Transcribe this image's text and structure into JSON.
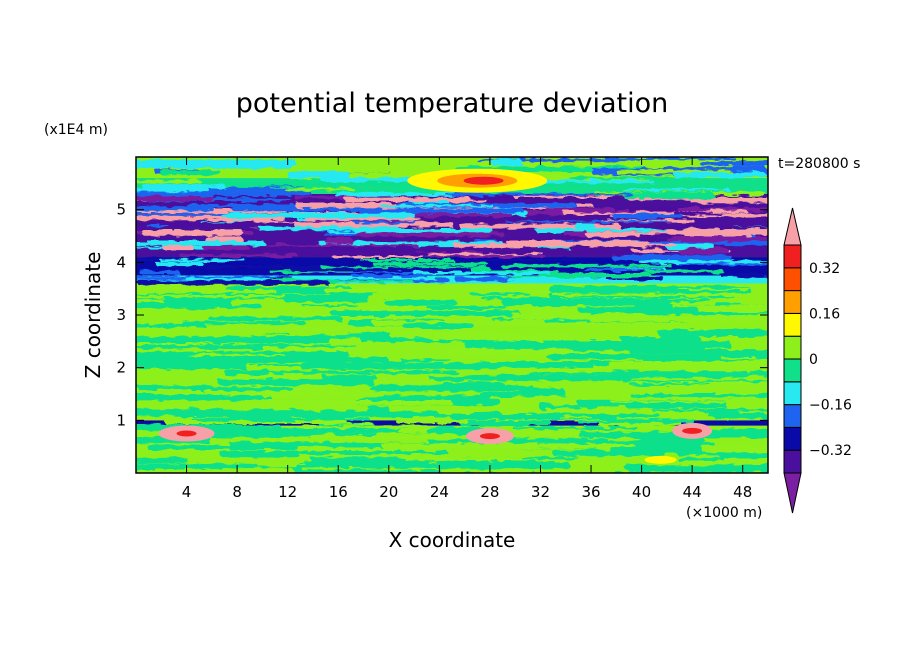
{
  "chart_data": {
    "type": "heatmap",
    "title": "potential temperature deviation",
    "time_label": "t=280800 s",
    "xlabel": "X coordinate",
    "ylabel": "Z coordinate",
    "x_unit": "(×1000 m)",
    "y_unit": "(x1E4 m)",
    "xlim": [
      0,
      50
    ],
    "ylim": [
      0,
      6
    ],
    "x_ticks": [
      "4",
      "8",
      "12",
      "16",
      "20",
      "24",
      "28",
      "32",
      "36",
      "40",
      "44",
      "48"
    ],
    "y_ticks": [
      "1",
      "2",
      "3",
      "4",
      "5"
    ],
    "colorbar": {
      "labels": [
        "0.32",
        "0.16",
        "0",
        "-0.16",
        "-0.32"
      ],
      "label_values": [
        0.32,
        0.16,
        0,
        -0.16,
        -0.32
      ],
      "levels": [
        -0.4,
        -0.32,
        -0.24,
        -0.16,
        -0.08,
        0,
        0.08,
        0.16,
        0.24,
        0.32,
        0.4
      ],
      "colors": [
        "#7a1fa2",
        "#4b0f9e",
        "#0a0aa8",
        "#1e64f0",
        "#28e8f0",
        "#10e08a",
        "#8ef01a",
        "#fff800",
        "#ffa000",
        "#ff5000",
        "#f02020",
        "#f8a0a8"
      ],
      "extend": "both"
    },
    "field_bands": [
      {
        "z": [
          0.0,
          0.9
        ],
        "value": 0.04
      },
      {
        "z": [
          0.9,
          1.0
        ],
        "value": -0.3
      },
      {
        "z": [
          1.0,
          3.6
        ],
        "value": 0.05
      },
      {
        "z": [
          3.6,
          3.75
        ],
        "value": -0.1
      },
      {
        "z": [
          3.75,
          4.1
        ],
        "value": -0.25
      },
      {
        "z": [
          4.1,
          5.3
        ],
        "value": -0.36
      },
      {
        "z": [
          5.3,
          5.6
        ],
        "value": -0.05
      },
      {
        "z": [
          5.6,
          6.0
        ],
        "value": 0.02
      }
    ]
  }
}
